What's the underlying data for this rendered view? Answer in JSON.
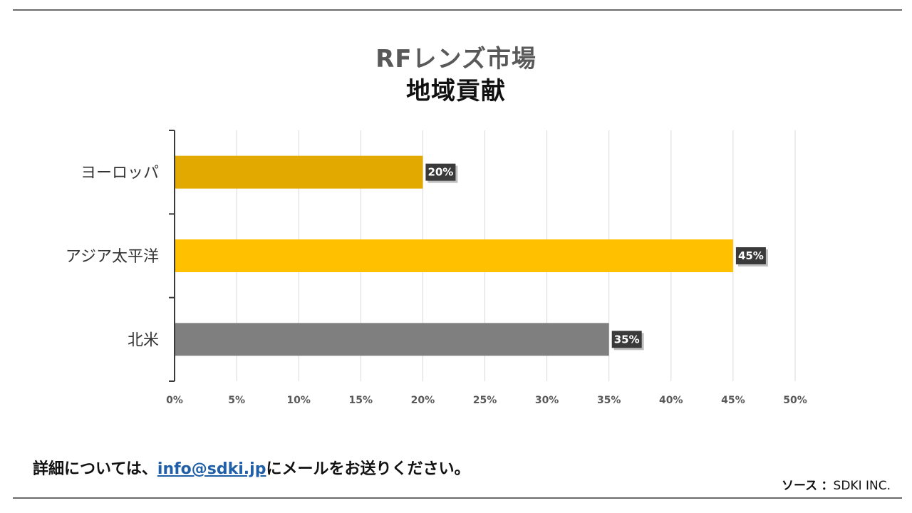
{
  "chart_data": {
    "type": "bar",
    "orientation": "horizontal",
    "title": "RFレンズ市場",
    "subtitle": "地域貢献",
    "categories": [
      "ヨーロッパ",
      "アジア太平洋",
      "北米"
    ],
    "values": [
      20,
      45,
      35
    ],
    "value_labels": [
      "20%",
      "45%",
      "35%"
    ],
    "bar_colors": [
      "#E2AA00",
      "#FFC000",
      "#7F7F7F"
    ],
    "xlim": [
      0,
      50
    ],
    "x_ticks": [
      0,
      5,
      10,
      15,
      20,
      25,
      30,
      35,
      40,
      45,
      50
    ],
    "x_tick_labels": [
      "0%",
      "5%",
      "10%",
      "15%",
      "20%",
      "25%",
      "30%",
      "35%",
      "40%",
      "45%",
      "50%"
    ],
    "xlabel": "",
    "ylabel": "",
    "grid": true,
    "legend": "none"
  },
  "footer": {
    "prefix": "詳細については、",
    "email": "info@sdki.jp",
    "suffix": "にメールをお送りください。",
    "link_color": "#1F5FA8"
  },
  "source": {
    "label": "ソース",
    "separator": "：",
    "value": "SDKI INC."
  },
  "colors": {
    "rule": "#6B6B6B",
    "title_primary": "#595959",
    "title_secondary": "#111111",
    "label_box": "#3A3A3A"
  }
}
